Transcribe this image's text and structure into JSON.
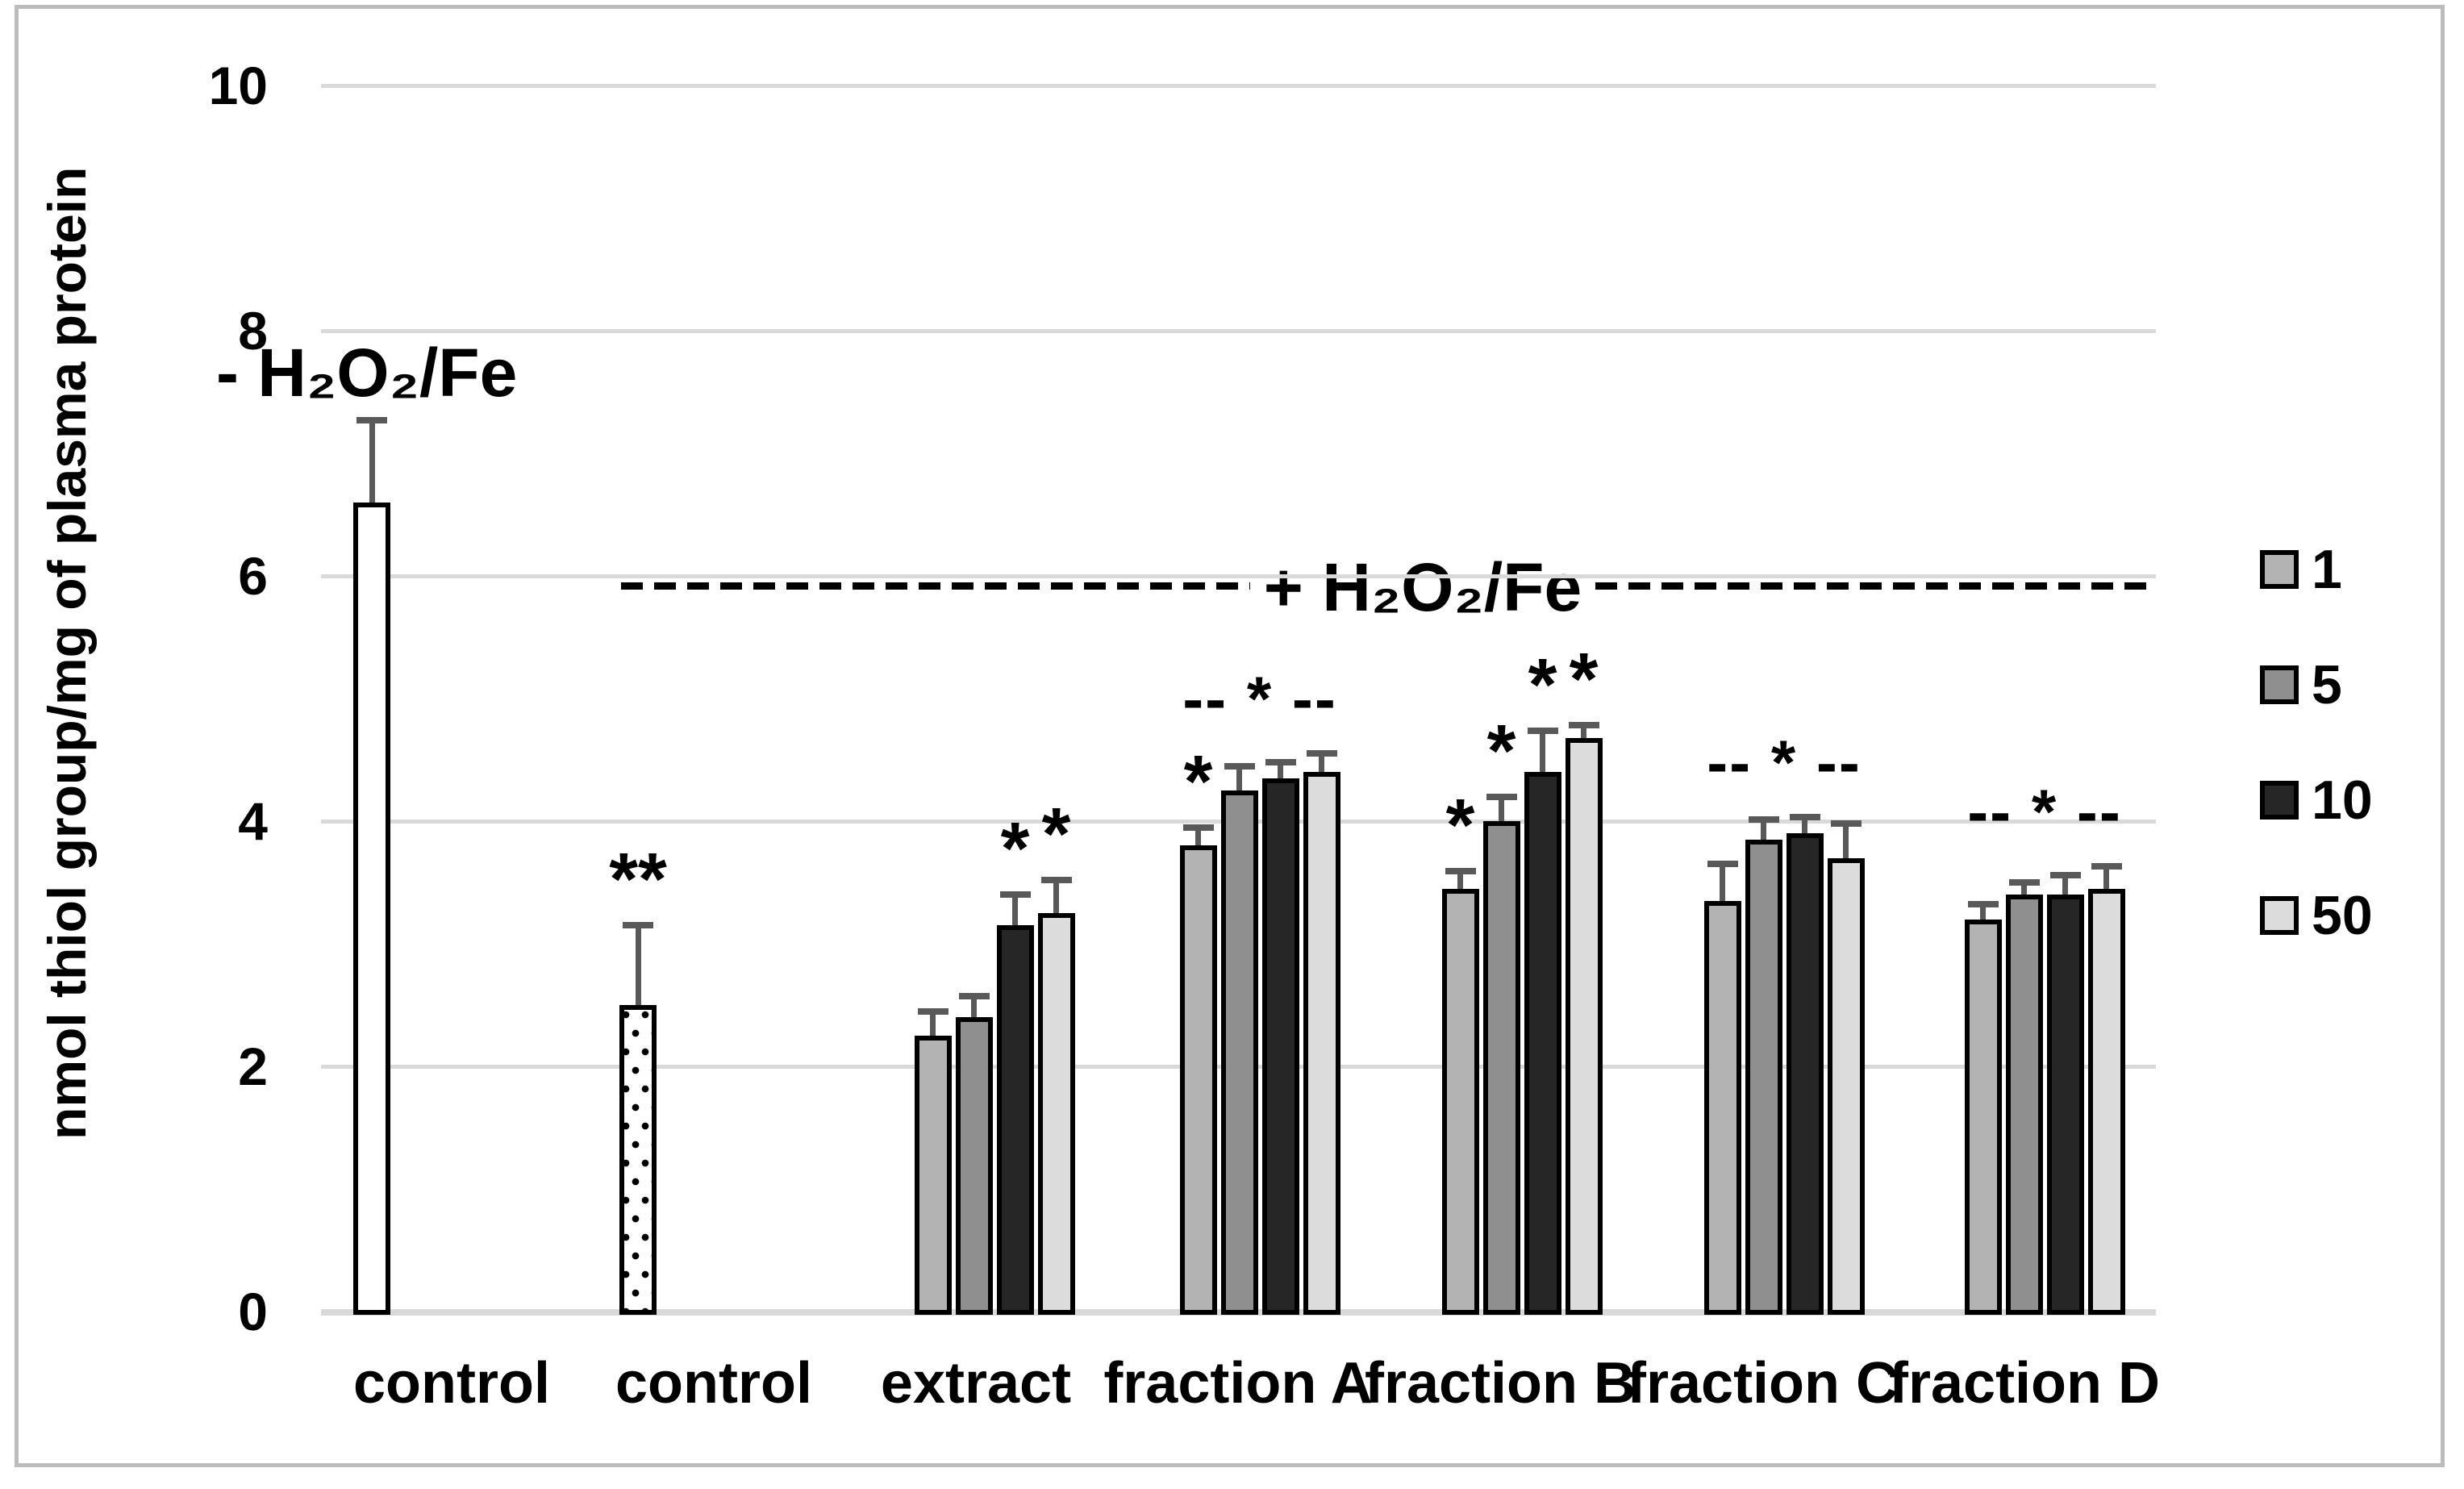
{
  "figure": {
    "background": "#ffffff",
    "frame_color": "#bcbcbc"
  },
  "chart_data": {
    "type": "bar",
    "title": "",
    "xlabel": "",
    "ylabel": "nmol thiol group/mg of plasma protein",
    "ylim": [
      0,
      10
    ],
    "yticks": [
      0,
      2,
      4,
      6,
      8,
      10
    ],
    "grid": "horizontal",
    "grid_color": "#d9d9d9",
    "bar_border_color": "#000000",
    "error_bar_color": "#595959",
    "legend": {
      "position": "right",
      "entries": [
        {
          "label": "1",
          "color": "#b3b3b3"
        },
        {
          "label": "5",
          "color": "#8f8f8f"
        },
        {
          "label": "10",
          "color": "#262626"
        },
        {
          "label": "50",
          "color": "#dcdcdc"
        }
      ]
    },
    "condition_labels": [
      {
        "text": "- H₂O₂/Fe",
        "applies_to": "untreated control"
      },
      {
        "text": "+ H₂O₂/Fe",
        "applies_to": "all treated groups",
        "style": "dashed-divider",
        "y_value": 5.9
      }
    ],
    "categories": [
      "control",
      "control",
      "extract",
      "fraction A",
      "fraction B",
      "fraction C",
      "fraction D"
    ],
    "groups": [
      {
        "category": "control",
        "group_significance": "",
        "bars": [
          {
            "series": "control",
            "value": 6.6,
            "error": 0.67,
            "fill": "white",
            "significance": ""
          }
        ]
      },
      {
        "category": "control",
        "group_significance": "",
        "bars": [
          {
            "series": "control",
            "value": 2.5,
            "error": 0.65,
            "fill": "dotted",
            "significance": "**"
          }
        ]
      },
      {
        "category": "extract",
        "group_significance": "",
        "bars": [
          {
            "series": "1",
            "value": 2.25,
            "error": 0.2,
            "significance": ""
          },
          {
            "series": "5",
            "value": 2.4,
            "error": 0.17,
            "significance": ""
          },
          {
            "series": "10",
            "value": 3.15,
            "error": 0.25,
            "significance": "*"
          },
          {
            "series": "50",
            "value": 3.25,
            "error": 0.27,
            "significance": "*"
          }
        ]
      },
      {
        "category": "fraction A",
        "group_significance": "-- * --",
        "bars": [
          {
            "series": "1",
            "value": 3.8,
            "error": 0.15,
            "significance": "*"
          },
          {
            "series": "5",
            "value": 4.25,
            "error": 0.2,
            "significance": ""
          },
          {
            "series": "10",
            "value": 4.35,
            "error": 0.13,
            "significance": ""
          },
          {
            "series": "50",
            "value": 4.4,
            "error": 0.15,
            "significance": ""
          }
        ]
      },
      {
        "category": "fraction B",
        "group_significance": "",
        "bars": [
          {
            "series": "1",
            "value": 3.45,
            "error": 0.14,
            "significance": "*"
          },
          {
            "series": "5",
            "value": 4.0,
            "error": 0.2,
            "significance": "*"
          },
          {
            "series": "10",
            "value": 4.4,
            "error": 0.34,
            "significance": "*"
          },
          {
            "series": "50",
            "value": 4.68,
            "error": 0.1,
            "significance": "*"
          }
        ]
      },
      {
        "category": "fraction C",
        "group_significance": "-- * --",
        "bars": [
          {
            "series": "1",
            "value": 3.35,
            "error": 0.3,
            "significance": ""
          },
          {
            "series": "5",
            "value": 3.85,
            "error": 0.16,
            "significance": ""
          },
          {
            "series": "10",
            "value": 3.9,
            "error": 0.13,
            "significance": ""
          },
          {
            "series": "50",
            "value": 3.7,
            "error": 0.28,
            "significance": ""
          }
        ]
      },
      {
        "category": "fraction D",
        "group_significance": "-- * --",
        "bars": [
          {
            "series": "1",
            "value": 3.2,
            "error": 0.12,
            "significance": ""
          },
          {
            "series": "5",
            "value": 3.4,
            "error": 0.1,
            "significance": ""
          },
          {
            "series": "10",
            "value": 3.4,
            "error": 0.16,
            "significance": ""
          },
          {
            "series": "50",
            "value": 3.45,
            "error": 0.18,
            "significance": ""
          }
        ]
      }
    ]
  }
}
